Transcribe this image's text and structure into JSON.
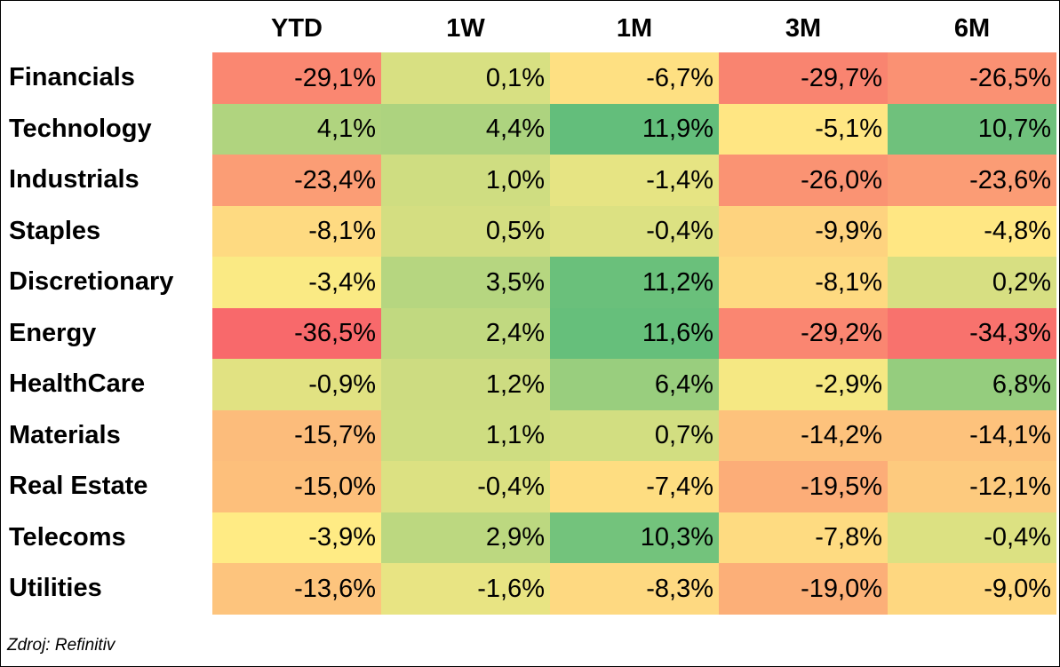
{
  "chart_data": {
    "type": "heatmap",
    "columns": [
      "YTD",
      "1W",
      "1M",
      "3M",
      "6M"
    ],
    "rows": [
      {
        "label": "Financials",
        "values": [
          -29.1,
          0.1,
          -6.7,
          -29.7,
          -26.5
        ],
        "display": [
          "-29,1%",
          "0,1%",
          "-6,7%",
          "-29,7%",
          "-26,5%"
        ]
      },
      {
        "label": "Technology",
        "values": [
          4.1,
          4.4,
          11.9,
          -5.1,
          10.7
        ],
        "display": [
          "4,1%",
          "4,4%",
          "11,9%",
          "-5,1%",
          "10,7%"
        ]
      },
      {
        "label": "Industrials",
        "values": [
          -23.4,
          1.0,
          -1.4,
          -26.0,
          -23.6
        ],
        "display": [
          "-23,4%",
          "1,0%",
          "-1,4%",
          "-26,0%",
          "-23,6%"
        ]
      },
      {
        "label": "Staples",
        "values": [
          -8.1,
          0.5,
          -0.4,
          -9.9,
          -4.8
        ],
        "display": [
          "-8,1%",
          "0,5%",
          "-0,4%",
          "-9,9%",
          "-4,8%"
        ]
      },
      {
        "label": "Discretionary",
        "values": [
          -3.4,
          3.5,
          11.2,
          -8.1,
          0.2
        ],
        "display": [
          "-3,4%",
          "3,5%",
          "11,2%",
          "-8,1%",
          "0,2%"
        ]
      },
      {
        "label": "Energy",
        "values": [
          -36.5,
          2.4,
          11.6,
          -29.2,
          -34.3
        ],
        "display": [
          "-36,5%",
          "2,4%",
          "11,6%",
          "-29,2%",
          "-34,3%"
        ]
      },
      {
        "label": "HealthCare",
        "values": [
          -0.9,
          1.2,
          6.4,
          -2.9,
          6.8
        ],
        "display": [
          "-0,9%",
          "1,2%",
          "6,4%",
          "-2,9%",
          "6,8%"
        ]
      },
      {
        "label": "Materials",
        "values": [
          -15.7,
          1.1,
          0.7,
          -14.2,
          -14.1
        ],
        "display": [
          "-15,7%",
          "1,1%",
          "0,7%",
          "-14,2%",
          "-14,1%"
        ]
      },
      {
        "label": "Real Estate",
        "values": [
          -15.0,
          -0.4,
          -7.4,
          -19.5,
          -12.1
        ],
        "display": [
          "-15,0%",
          "-0,4%",
          "-7,4%",
          "-19,5%",
          "-12,1%"
        ]
      },
      {
        "label": "Telecoms",
        "values": [
          -3.9,
          2.9,
          10.3,
          -7.8,
          -0.4
        ],
        "display": [
          "-3,9%",
          "2,9%",
          "10,3%",
          "-7,8%",
          "-0,4%"
        ]
      },
      {
        "label": "Utilities",
        "values": [
          -13.6,
          -1.6,
          -8.3,
          -19.0,
          -9.0
        ],
        "display": [
          "-13,6%",
          "-1,6%",
          "-8,3%",
          "-19,0%",
          "-9,0%"
        ]
      }
    ],
    "color_scale": {
      "min": -36.5,
      "max": 11.9,
      "low": "#f8696b",
      "mid": "#ffeb84",
      "high": "#63be7b"
    },
    "grid": false
  },
  "source_note": "Zdroj: Refinitiv"
}
